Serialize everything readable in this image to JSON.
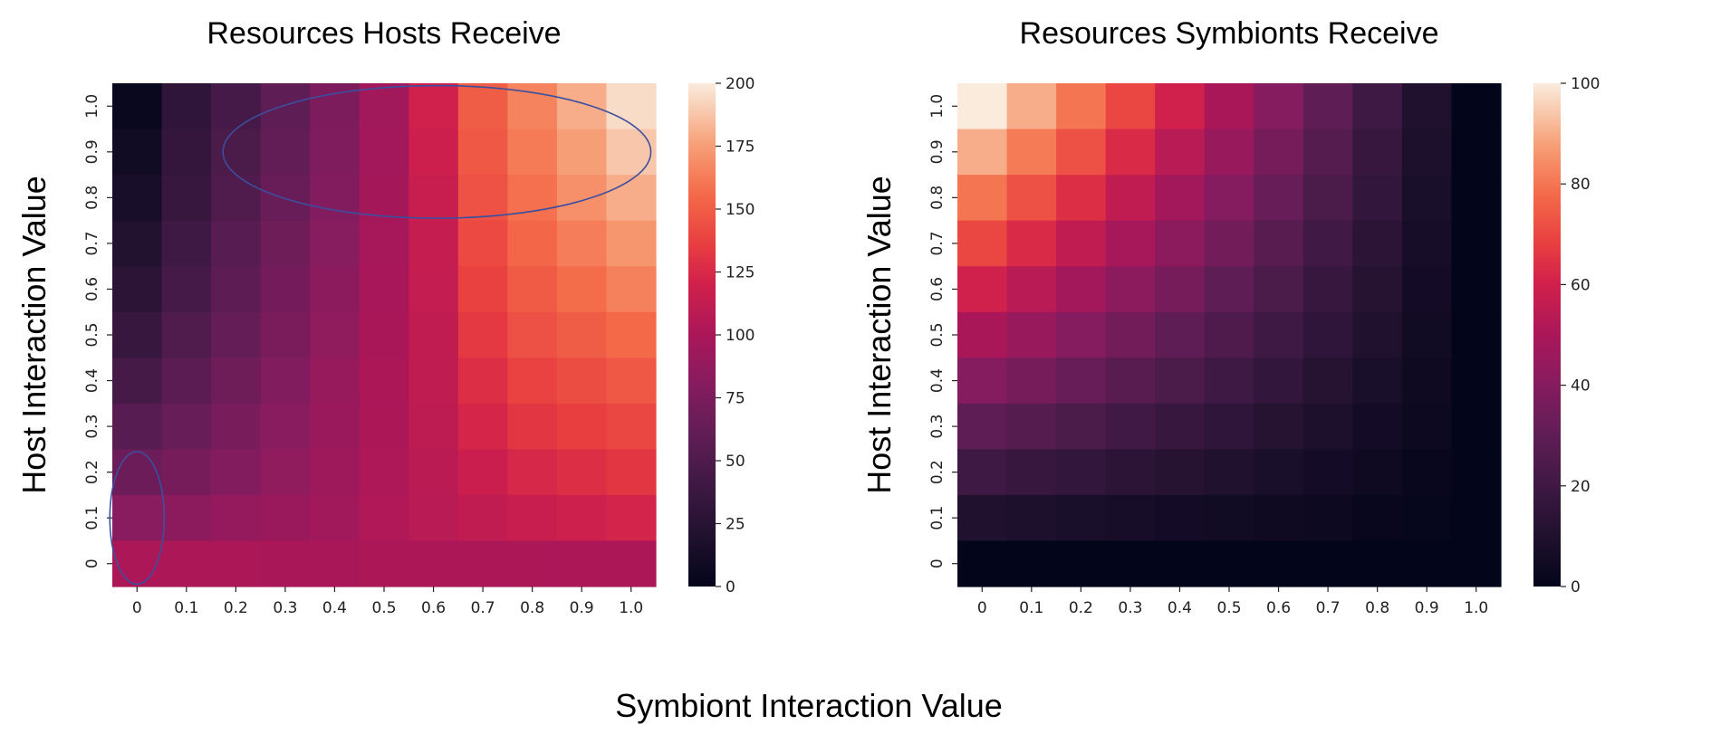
{
  "shared_xlabel": "Symbiont Interaction Value",
  "chart_data": [
    {
      "type": "heatmap",
      "title": "Resources Hosts Receive",
      "xlabel": "",
      "ylabel": "Host Interaction Value",
      "x_ticks": [
        "0",
        "0.1",
        "0.2",
        "0.3",
        "0.4",
        "0.5",
        "0.6",
        "0.7",
        "0.8",
        "0.9",
        "1.0"
      ],
      "y_ticks": [
        "0",
        "0.1",
        "0.2",
        "0.3",
        "0.4",
        "0.5",
        "0.6",
        "0.7",
        "0.8",
        "0.9",
        "1.0"
      ],
      "colorbar": {
        "min": 0,
        "max": 200,
        "ticks": [
          "0",
          "25",
          "50",
          "75",
          "100",
          "125",
          "150",
          "175",
          "200"
        ],
        "colormap": "rocket"
      },
      "annotations": [
        {
          "shape": "ellipse",
          "color": "#3b4fa0",
          "x_center": 0,
          "y_center": 0.1,
          "x_radius": 0.055,
          "y_radius": 0.145
        },
        {
          "shape": "ellipse",
          "color": "#3b4fa0",
          "x_center": 0.607,
          "y_center": 0.9,
          "x_radius": 0.433,
          "y_radius": 0.145
        }
      ],
      "values_by_host_value_rows_from_1_0_down_to_0": [
        [
          5,
          30,
          45,
          60,
          75,
          95,
          120,
          150,
          165,
          180,
          195
        ],
        [
          10,
          33,
          48,
          62,
          77,
          96,
          118,
          148,
          162,
          175,
          188
        ],
        [
          15,
          36,
          51,
          65,
          79,
          97,
          116,
          145,
          158,
          170,
          180
        ],
        [
          21,
          40,
          55,
          68,
          81,
          98,
          114,
          141,
          154,
          163,
          172
        ],
        [
          28,
          45,
          59,
          71,
          84,
          99,
          113,
          137,
          149,
          157,
          164
        ],
        [
          36,
          51,
          63,
          74,
          86,
          100,
          112,
          133,
          144,
          150,
          156
        ],
        [
          44,
          57,
          68,
          78,
          89,
          101,
          111,
          128,
          138,
          143,
          148
        ],
        [
          55,
          64,
          73,
          82,
          91,
          101,
          110,
          123,
          132,
          136,
          140
        ],
        [
          67,
          72,
          79,
          86,
          93,
          102,
          109,
          117,
          124,
          128,
          132
        ],
        [
          82,
          84,
          88,
          91,
          95,
          103,
          108,
          112,
          116,
          119,
          122
        ],
        [
          101,
          101,
          101,
          100,
          100,
          101,
          101,
          101,
          101,
          101,
          101
        ]
      ]
    },
    {
      "type": "heatmap",
      "title": "Resources Symbionts Receive",
      "xlabel": "",
      "ylabel": "Host Interaction Value",
      "x_ticks": [
        "0",
        "0.1",
        "0.2",
        "0.3",
        "0.4",
        "0.5",
        "0.6",
        "0.7",
        "0.8",
        "0.9",
        "1.0"
      ],
      "y_ticks": [
        "0",
        "0.1",
        "0.2",
        "0.3",
        "0.4",
        "0.5",
        "0.6",
        "0.7",
        "0.8",
        "0.9",
        "1.0"
      ],
      "colorbar": {
        "min": 0,
        "max": 100,
        "ticks": [
          "0",
          "20",
          "40",
          "60",
          "80",
          "100"
        ],
        "colormap": "rocket"
      },
      "values_by_host_value_rows_from_1_0_down_to_0": [
        [
          100,
          90,
          80,
          70,
          60,
          50,
          40,
          30,
          20,
          10,
          0
        ],
        [
          90,
          81,
          72,
          63,
          54,
          45,
          36,
          27,
          18,
          9,
          0
        ],
        [
          80,
          72,
          64,
          56,
          48,
          40,
          32,
          24,
          16,
          8,
          0
        ],
        [
          70,
          63,
          56,
          49,
          42,
          35,
          28,
          21,
          14,
          7,
          0
        ],
        [
          60,
          54,
          48,
          42,
          36,
          30,
          24,
          18,
          12,
          6,
          0
        ],
        [
          50,
          45,
          40,
          35,
          30,
          25,
          20,
          15,
          10,
          5,
          0
        ],
        [
          40,
          36,
          32,
          28,
          24,
          20,
          16,
          12,
          8,
          4,
          0
        ],
        [
          30,
          27,
          24,
          21,
          18,
          15,
          12,
          9,
          6,
          3,
          0
        ],
        [
          20,
          18,
          16,
          14,
          12,
          10,
          8,
          6,
          4,
          2,
          0
        ],
        [
          10,
          9,
          8,
          7,
          6,
          5,
          4,
          3,
          2,
          1,
          0
        ],
        [
          0,
          0,
          0,
          0,
          0,
          0,
          0,
          0,
          0,
          0,
          0
        ]
      ]
    }
  ]
}
